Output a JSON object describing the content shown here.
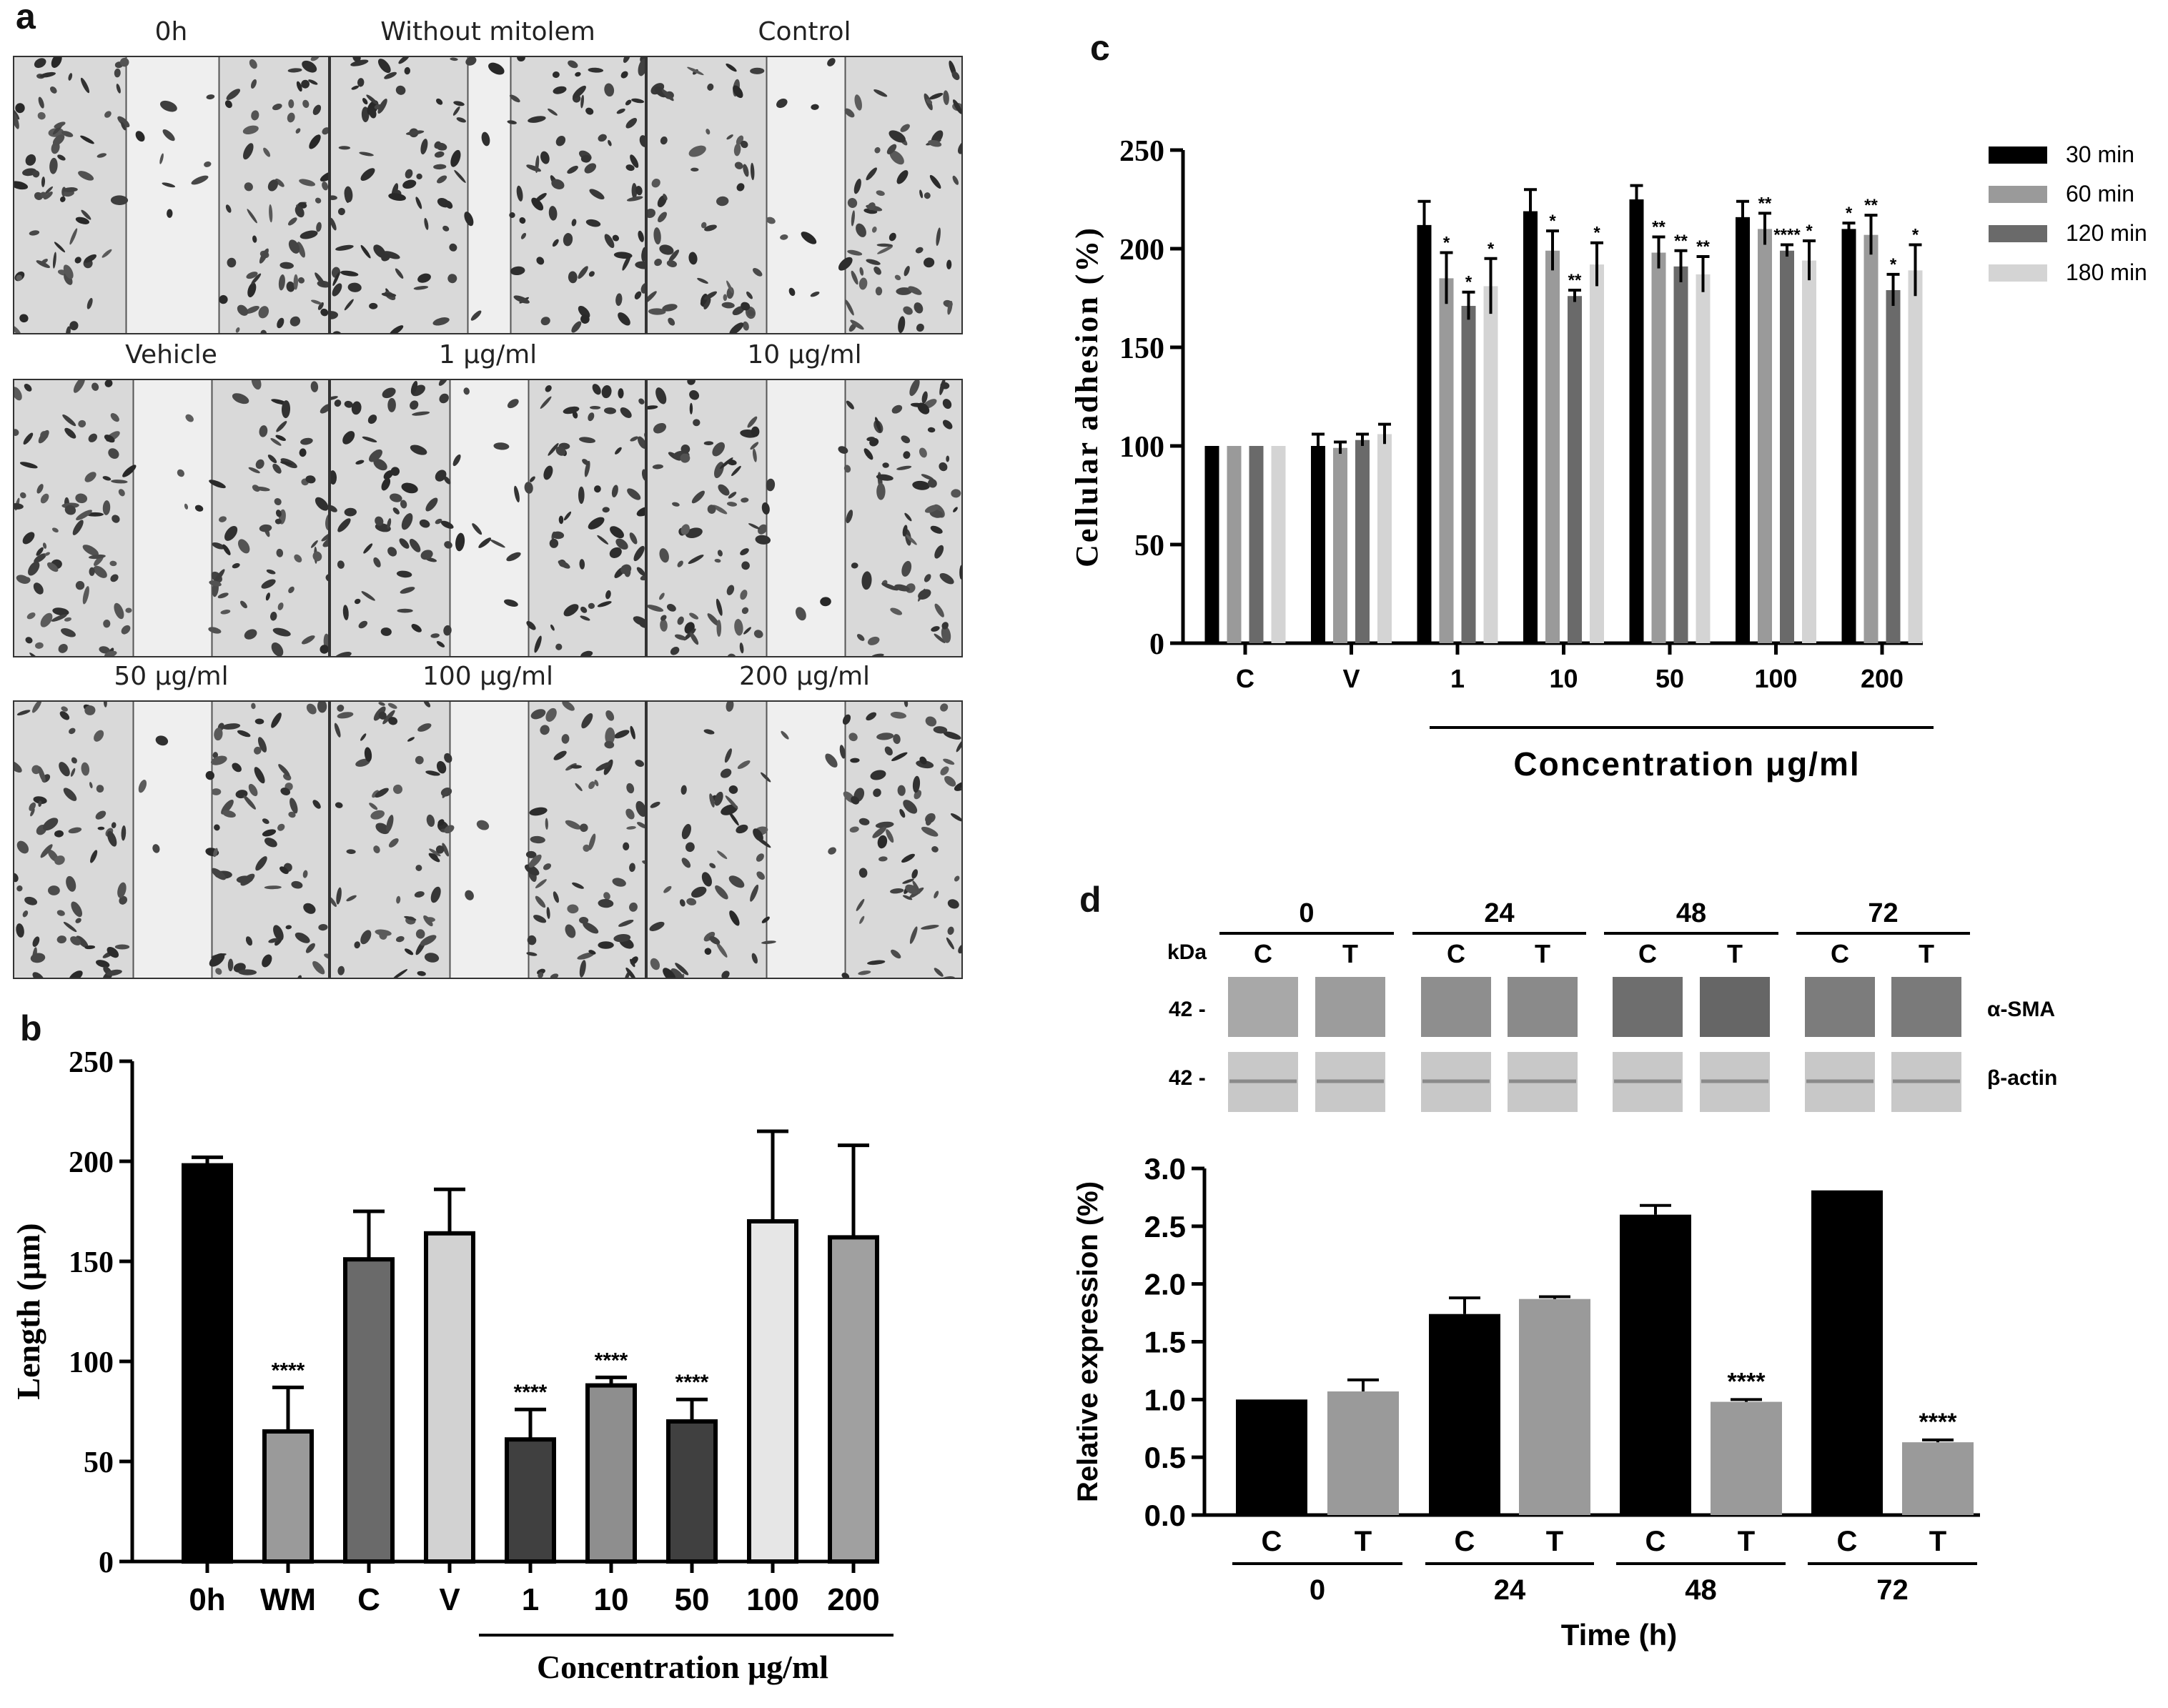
{
  "panels": {
    "a": "a",
    "b": "b",
    "c": "c",
    "d": "d"
  },
  "panel_a": {
    "conditions": [
      "0h",
      "Without mitolem",
      "Control",
      "Vehicle",
      "1 μg/ml",
      "10 μg/ml",
      "50 μg/ml",
      "100 μg/ml",
      "200 μg/ml"
    ]
  },
  "chart_data": [
    {
      "id": "b",
      "type": "bar",
      "categories": [
        "0h",
        "WM",
        "C",
        "V",
        "1",
        "10",
        "50",
        "100",
        "200"
      ],
      "values": [
        198,
        65,
        151,
        164,
        61,
        88,
        70,
        170,
        162
      ],
      "errors": [
        4,
        22,
        24,
        22,
        15,
        4,
        11,
        45,
        46
      ],
      "significance": [
        "",
        "****",
        "",
        "",
        "****",
        "****",
        "****",
        "",
        ""
      ],
      "colors": [
        "#000000",
        "#9a9a9a",
        "#6a6a6a",
        "#d2d2d2",
        "#404040",
        "#8e8e8e",
        "#404040",
        "#e6e6e6",
        "#a0a0a0"
      ],
      "ylabel": "Length (μm)",
      "xlabel": "Concentration μg/ml",
      "ylim": [
        0,
        250
      ],
      "yticks": [
        0,
        50,
        100,
        150,
        200,
        250
      ]
    },
    {
      "id": "c",
      "type": "bar",
      "categories": [
        "C",
        "V",
        "1",
        "10",
        "50",
        "100",
        "200"
      ],
      "series": [
        {
          "name": "30 min",
          "color": "#000000",
          "values": [
            100,
            100,
            212,
            219,
            225,
            216,
            210
          ],
          "errors": [
            0,
            6,
            12,
            11,
            7,
            8,
            3
          ],
          "sig": [
            "",
            "",
            "",
            "",
            "",
            "",
            "*"
          ]
        },
        {
          "name": "60 min",
          "color": "#9a9a9a",
          "values": [
            100,
            99,
            185,
            199,
            198,
            210,
            207
          ],
          "errors": [
            0,
            3,
            13,
            10,
            8,
            8,
            10
          ],
          "sig": [
            "",
            "",
            "*",
            "*",
            "**",
            "**",
            "**"
          ]
        },
        {
          "name": "120 min",
          "color": "#6a6a6a",
          "values": [
            100,
            103,
            171,
            176,
            191,
            199,
            179
          ],
          "errors": [
            0,
            3,
            7,
            3,
            8,
            3,
            8
          ],
          "sig": [
            "",
            "",
            "*",
            "**",
            "**",
            "****",
            "*"
          ]
        },
        {
          "name": "180 min",
          "color": "#d4d4d4",
          "values": [
            100,
            106,
            181,
            192,
            187,
            194,
            189
          ],
          "errors": [
            0,
            5,
            14,
            11,
            9,
            10,
            13
          ],
          "sig": [
            "",
            "",
            "*",
            "*",
            "**",
            "*",
            "*"
          ]
        }
      ],
      "ylabel": "Cellular adhesion (%)",
      "xlabel": "Concentration μg/ml",
      "ylim": [
        0,
        250
      ],
      "yticks": [
        0,
        50,
        100,
        150,
        200,
        250
      ]
    },
    {
      "id": "d",
      "type": "bar",
      "categories": [
        "C",
        "T",
        "C",
        "T",
        "C",
        "T",
        "C",
        "T"
      ],
      "groups": [
        "0",
        "24",
        "48",
        "72"
      ],
      "values": [
        1.0,
        1.07,
        1.74,
        1.87,
        2.6,
        0.98,
        2.81,
        0.63
      ],
      "errors": [
        0,
        0.1,
        0.14,
        0.02,
        0.08,
        0.02,
        0,
        0.02
      ],
      "significance": [
        "",
        "",
        "",
        "",
        "",
        "****",
        "",
        "****"
      ],
      "colors": [
        "#000000",
        "#9a9a9a",
        "#000000",
        "#9a9a9a",
        "#000000",
        "#9a9a9a",
        "#000000",
        "#9a9a9a"
      ],
      "ylabel": "Relative  expression (%)",
      "xlabel": "Time (h)",
      "ylim": [
        0,
        3.0
      ],
      "yticks": [
        "0.0",
        "0.5",
        "1.0",
        "1.5",
        "2.0",
        "2.5",
        "3.0"
      ]
    }
  ],
  "blot": {
    "times": [
      "0",
      "24",
      "48",
      "72"
    ],
    "lanes": [
      "C",
      "T",
      "C",
      "T",
      "C",
      "T",
      "C",
      "T"
    ],
    "unit": "kDa",
    "marker_alpha": "42 -",
    "marker_beta": "42 -",
    "protein_alpha": "α-SMA",
    "protein_beta": "β-actin"
  }
}
